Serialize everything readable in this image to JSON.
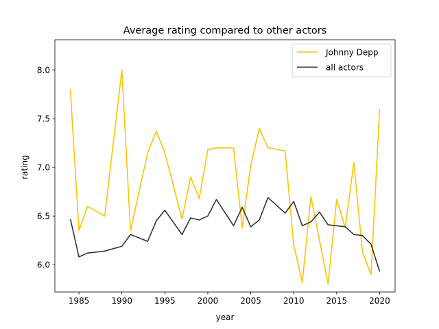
{
  "chart_data": {
    "type": "line",
    "title": "Average rating compared to other actors",
    "xlabel": "year",
    "ylabel": "rating",
    "xlim": [
      1982.2,
      2021.8
    ],
    "ylim": [
      5.72,
      8.31
    ],
    "xticks": [
      1985,
      1990,
      1995,
      2000,
      2005,
      2010,
      2015,
      2020
    ],
    "yticks": [
      6.0,
      6.5,
      7.0,
      7.5,
      8.0
    ],
    "grid": false,
    "legend_position": "top-right",
    "series": [
      {
        "name": "Johnny Depp",
        "color": "#ffc300",
        "x": [
          1984,
          1985,
          1986,
          1988,
          1990,
          1991,
          1993,
          1994,
          1995,
          1997,
          1998,
          1999,
          2000,
          2001,
          2003,
          2004,
          2005,
          2006,
          2007,
          2009,
          2010,
          2011,
          2012,
          2014,
          2015,
          2016,
          2017,
          2018,
          2019,
          2020
        ],
        "y": [
          7.8,
          6.35,
          6.6,
          6.5,
          8.0,
          6.35,
          7.15,
          7.37,
          7.15,
          6.47,
          6.9,
          6.68,
          7.18,
          7.2,
          7.2,
          6.38,
          7.02,
          7.4,
          7.2,
          7.17,
          6.2,
          5.82,
          6.7,
          5.8,
          6.67,
          6.38,
          7.05,
          6.13,
          5.9,
          7.6
        ]
      },
      {
        "name": "all actors",
        "color": "#333333",
        "x": [
          1984,
          1985,
          1986,
          1988,
          1990,
          1991,
          1993,
          1994,
          1995,
          1997,
          1998,
          1999,
          2000,
          2001,
          2003,
          2004,
          2005,
          2006,
          2007,
          2009,
          2010,
          2011,
          2012,
          2013,
          2014,
          2016,
          2017,
          2018,
          2019,
          2020
        ],
        "y": [
          6.47,
          6.08,
          6.12,
          6.14,
          6.19,
          6.31,
          6.24,
          6.45,
          6.56,
          6.31,
          6.48,
          6.46,
          6.5,
          6.67,
          6.4,
          6.59,
          6.39,
          6.46,
          6.69,
          6.53,
          6.65,
          6.4,
          6.44,
          6.54,
          6.41,
          6.39,
          6.31,
          6.3,
          6.21,
          5.93
        ]
      }
    ]
  }
}
